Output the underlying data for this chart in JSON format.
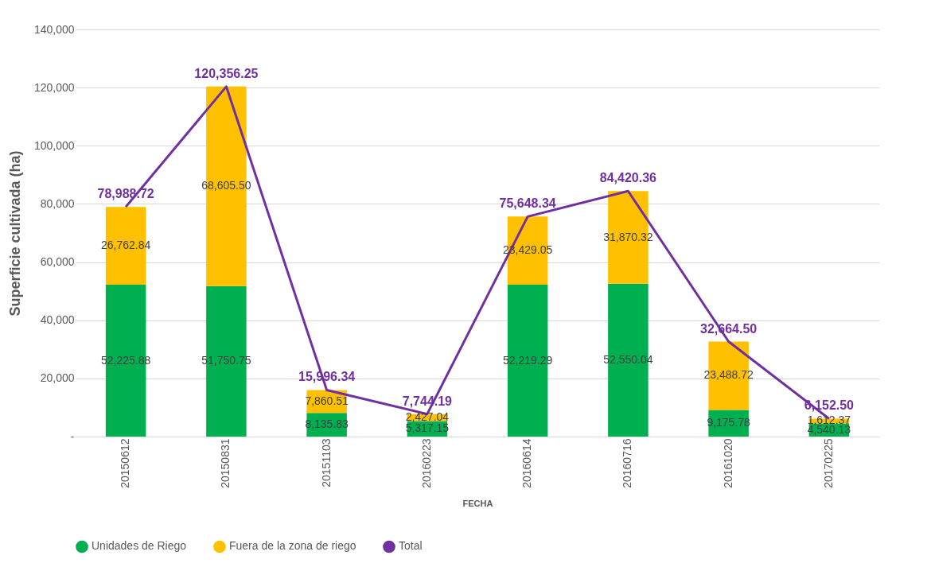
{
  "chart_data": {
    "type": "bar",
    "stacked": true,
    "xlabel": "FECHA",
    "ylabel": "Superficie cultivada (ha)",
    "categories": [
      "20150612",
      "20150831",
      "20151103",
      "20160223",
      "20160614",
      "20160716",
      "20161020",
      "20170225"
    ],
    "series": [
      {
        "name": "Unidades de Riego",
        "color": "#00b050",
        "values": [
          52225.88,
          51750.75,
          8135.83,
          5317.15,
          52219.29,
          52550.04,
          9175.78,
          4540.13
        ],
        "value_labels": [
          "52,225.88",
          "51,750.75",
          "8,135.83",
          "5,317.15",
          "52,219.29",
          "52,550.04",
          "9,175.78",
          "4,540.13"
        ]
      },
      {
        "name": "Fuera de la zona de riego",
        "color": "#ffc000",
        "values": [
          26762.84,
          68605.5,
          7860.51,
          2427.04,
          23429.05,
          31870.32,
          23488.72,
          1612.37
        ],
        "value_labels": [
          "26,762.84",
          "68,605.50",
          "7,860.51",
          "2,427.04",
          "23,429.05",
          "31,870.32",
          "23,488.72",
          "1,612.37"
        ]
      },
      {
        "name": "Total",
        "type": "line",
        "color": "#7030a0",
        "values": [
          78988.72,
          120356.25,
          15996.34,
          7744.19,
          75648.34,
          84420.36,
          32664.5,
          6152.5
        ],
        "value_labels": [
          "78,988.72",
          "120,356.25",
          "15,996.34",
          "7,744.19",
          "75,648.34",
          "84,420.36",
          "32,664.50",
          "6,152.50"
        ]
      }
    ],
    "ylim": [
      0,
      140000
    ],
    "yticks": [
      {
        "value": 0,
        "label": "-"
      },
      {
        "value": 20000,
        "label": "20,000"
      },
      {
        "value": 40000,
        "label": "40,000"
      },
      {
        "value": 60000,
        "label": "60,000"
      },
      {
        "value": 80000,
        "label": "80,000"
      },
      {
        "value": 100000,
        "label": "100,000"
      },
      {
        "value": 120000,
        "label": "120,000"
      },
      {
        "value": 140000,
        "label": "140,000"
      }
    ],
    "grid": "y",
    "legend": "bottom",
    "marker": "none",
    "line_style": "solid"
  }
}
